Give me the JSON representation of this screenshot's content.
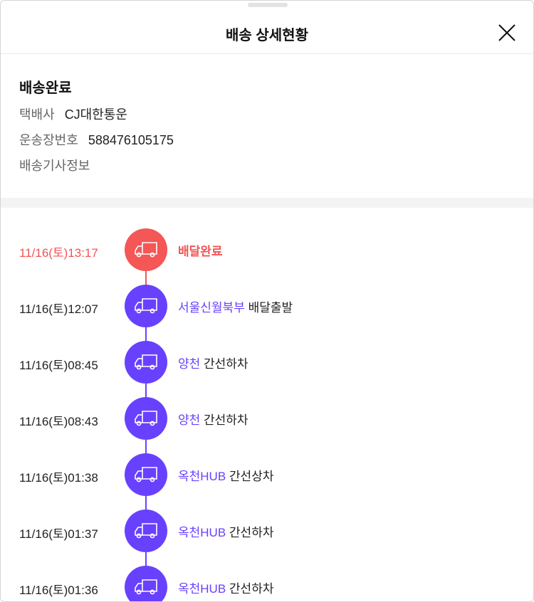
{
  "header": {
    "title": "배송 상세현황",
    "close_icon": "close-icon"
  },
  "summary": {
    "status": "배송완료",
    "carrier_label": "택배사",
    "carrier": "CJ대한통운",
    "tracking_label": "운송장번호",
    "tracking": "588476105175",
    "driver_label": "배송기사정보"
  },
  "colors": {
    "done": "#f55656",
    "progress": "#6841ff"
  },
  "events": [
    {
      "time": "11/16(토)13:17",
      "location": "",
      "action": "배달완료",
      "done": true
    },
    {
      "time": "11/16(토)12:07",
      "location": "서울신월북부",
      "action": "배달출발"
    },
    {
      "time": "11/16(토)08:45",
      "location": "양천",
      "action": "간선하차"
    },
    {
      "time": "11/16(토)08:43",
      "location": "양천",
      "action": "간선하차"
    },
    {
      "time": "11/16(토)01:38",
      "location": "옥천HUB",
      "action": "간선상차"
    },
    {
      "time": "11/16(토)01:37",
      "location": "옥천HUB",
      "action": "간선하차"
    },
    {
      "time": "11/16(토)01:36",
      "location": "옥천HUB",
      "action": "간선하차"
    }
  ]
}
